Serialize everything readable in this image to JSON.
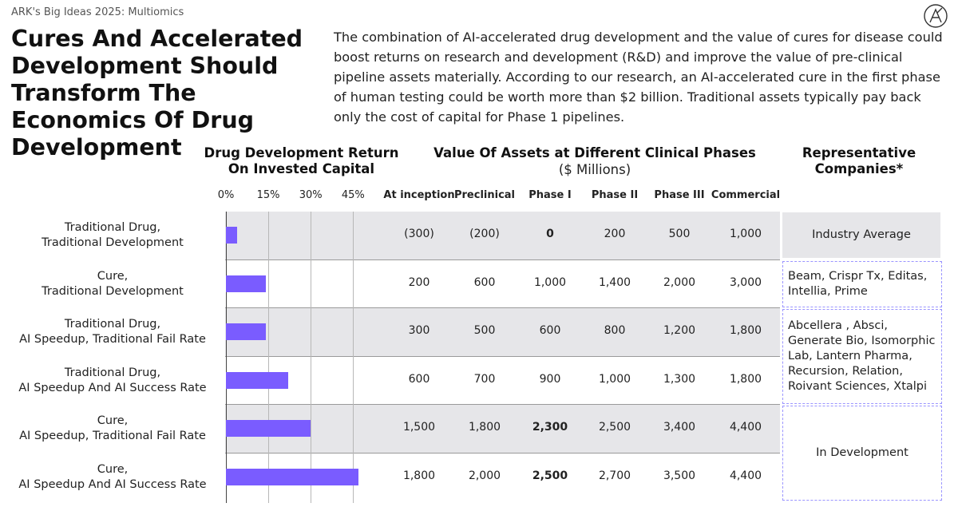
{
  "subtitle": "ARK's Big Ideas 2025: Multiomics",
  "headline": "Cures And Accelerated Development Should Transform The Economics Of Drug Development",
  "body_text": "The combination of AI-accelerated drug development and the value of cures for disease could boost returns on research and development (R&D) and improve the value of pre-clinical pipeline assets materially. According to our research, an AI-accelerated cure in the first phase of human testing could be worth more than $2 billion. Traditional assets typically pay back only the cost of capital for Phase 1 pipelines.",
  "colors": {
    "bar": "#7a5cff",
    "row_shade": "#e6e6e9",
    "box_border": "#9a94ff"
  },
  "logo_icon": "ark-logo-icon",
  "chart_data": {
    "type": "bar",
    "orientation": "horizontal",
    "title": "Drug Development Return On Invested Capital",
    "tick_labels": [
      "0%",
      "15%",
      "30%",
      "45%"
    ],
    "xlim": [
      0,
      0.5
    ],
    "categories": [
      "Traditional Drug, Traditional Development",
      "Cure, Traditional Development",
      "Traditional Drug, AI Speedup, Traditional Fail Rate",
      "Traditional Drug, AI Speedup And AI Success Rate",
      "Cure, AI Speedup, Traditional Fail Rate",
      "Cure, AI Speedup And AI Success Rate"
    ],
    "category_lines": [
      [
        "Traditional Drug,",
        "Traditional Development"
      ],
      [
        "Cure,",
        "Traditional Development"
      ],
      [
        "Traditional Drug,",
        "AI Speedup, Traditional Fail Rate"
      ],
      [
        "Traditional Drug,",
        "AI Speedup And AI Success Rate"
      ],
      [
        "Cure,",
        "AI Speedup, Traditional Fail Rate"
      ],
      [
        "Cure,",
        "AI Speedup And AI Success Rate"
      ]
    ],
    "values": [
      0.04,
      0.14,
      0.14,
      0.22,
      0.3,
      0.47
    ]
  },
  "table": {
    "title": "Value Of Assets at Different Clinical Phases",
    "unit": "($ Millions)",
    "columns": [
      "At inception",
      "Preclinical",
      "Phase I",
      "Phase II",
      "Phase III",
      "Commercial"
    ],
    "rows": [
      [
        "(300)",
        "(200)",
        "0",
        "200",
        "500",
        "1,000"
      ],
      [
        "200",
        "600",
        "1,000",
        "1,400",
        "2,000",
        "3,000"
      ],
      [
        "300",
        "500",
        "600",
        "800",
        "1,200",
        "1,800"
      ],
      [
        "600",
        "700",
        "900",
        "1,000",
        "1,300",
        "1,800"
      ],
      [
        "1,500",
        "1,800",
        "2,300",
        "2,500",
        "3,400",
        "4,400"
      ],
      [
        "1,800",
        "2,000",
        "2,500",
        "2,700",
        "3,500",
        "4,400"
      ]
    ],
    "bold_cells": [
      [
        0,
        2
      ],
      [
        4,
        2
      ],
      [
        5,
        2
      ]
    ]
  },
  "representatives": {
    "title": "Representative Companies*",
    "groups": [
      {
        "text": "Industry Average"
      },
      {
        "text": "Beam, Crispr Tx, Editas, Intellia, Prime"
      },
      {
        "text": "Abcellera , Absci, Generate Bio, Isomorphic Lab, Lantern Pharma, Recursion, Relation, Roivant Sciences, Xtalpi"
      },
      {
        "text": "In Development"
      }
    ]
  }
}
